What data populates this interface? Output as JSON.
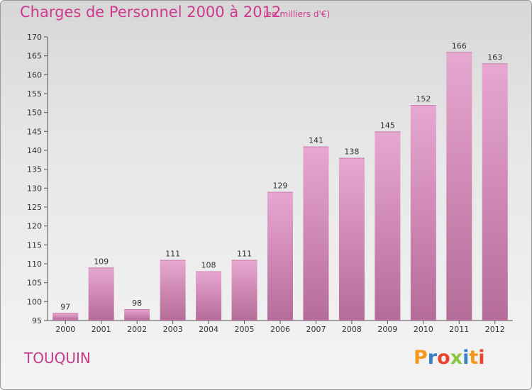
{
  "title": "Charges de Personnel 2000 à 2012",
  "subtitle": "(en milliers d'€)",
  "commune": "TOUQUIN",
  "logo": {
    "letters": [
      "P",
      "r",
      "o",
      "x",
      "i",
      "t",
      "i"
    ],
    "colors": [
      "#f39a1e",
      "#3a7fc6",
      "#e8462c",
      "#8cc63f",
      "#3a7fc6",
      "#f39a1e",
      "#e8462c"
    ]
  },
  "colors": {
    "bar_top": "#e7a7d0",
    "bar_bottom": "#b56c98",
    "accent": "#d0388f"
  },
  "chart_data": {
    "type": "bar",
    "categories": [
      "2000",
      "2001",
      "2002",
      "2003",
      "2004",
      "2005",
      "2006",
      "2007",
      "2008",
      "2009",
      "2010",
      "2011",
      "2012"
    ],
    "values": [
      97,
      109,
      98,
      111,
      108,
      111,
      129,
      141,
      138,
      145,
      152,
      166,
      163
    ],
    "title": "Charges de Personnel 2000 à 2012",
    "ylim": [
      95,
      170
    ],
    "yticks": [
      95,
      100,
      105,
      110,
      115,
      120,
      125,
      130,
      135,
      140,
      145,
      150,
      155,
      160,
      165,
      170
    ],
    "grid": false
  }
}
